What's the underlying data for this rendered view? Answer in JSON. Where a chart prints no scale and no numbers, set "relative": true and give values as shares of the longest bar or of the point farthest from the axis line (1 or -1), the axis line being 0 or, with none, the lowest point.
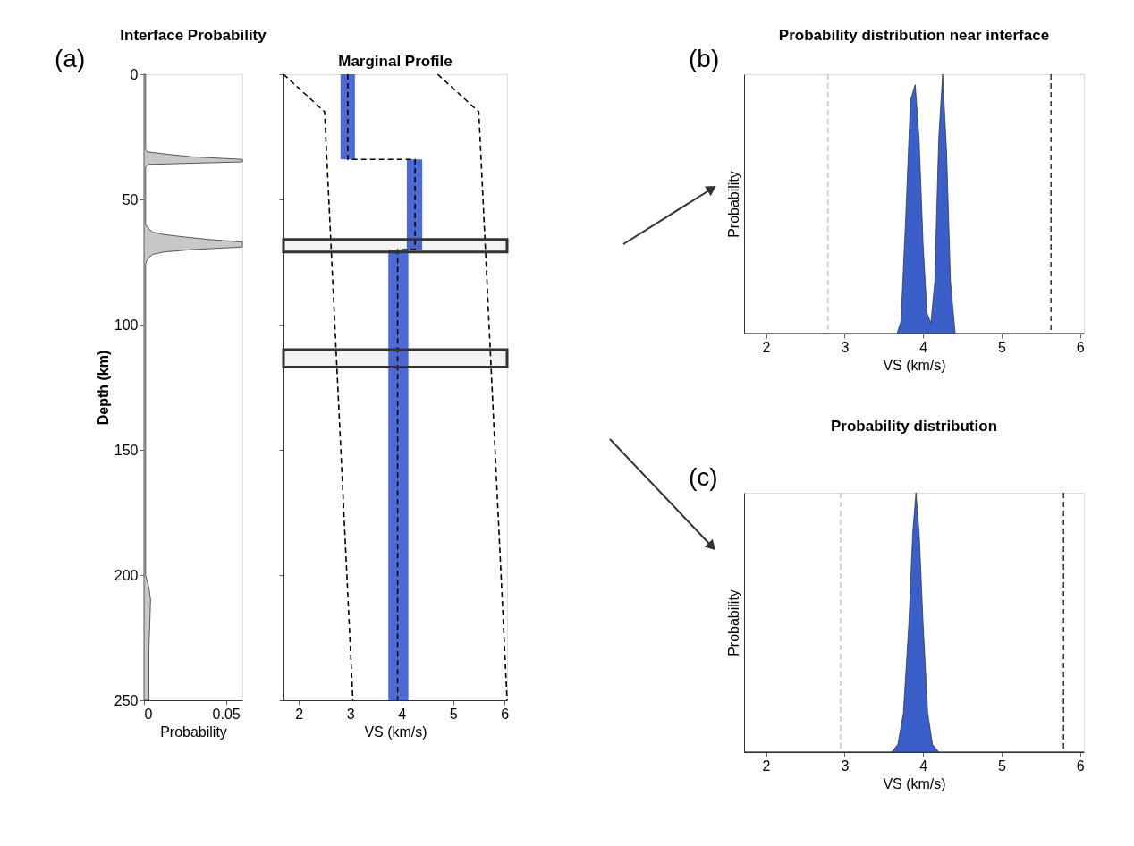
{
  "chart_data": [
    {
      "type": "area",
      "orientation": "horizontal",
      "title": "Interface Probability",
      "xlabel": "Probability",
      "ylabel": "Depth (km)",
      "annotations": [
        "(a)"
      ],
      "xlim": [
        0,
        0.06
      ],
      "xticks": [
        0,
        0.05
      ],
      "ylim": [
        250,
        0
      ],
      "yticks": [
        0,
        50,
        100,
        150,
        200,
        250
      ],
      "grid": false,
      "series": [
        {
          "color": "#c8c8c8",
          "x": [
            0,
            10,
            20,
            30,
            31,
            32,
            33,
            34,
            35,
            36,
            37,
            40,
            50,
            60,
            61,
            63,
            64,
            65,
            66,
            67,
            68,
            69,
            70,
            71,
            72,
            74,
            76,
            80,
            100,
            150,
            190,
            200,
            205,
            210,
            230,
            250
          ],
          "values": [
            0.001,
            0.001,
            0.001,
            0.001,
            0.002,
            0.015,
            0.03,
            0.06,
            0.06,
            0.003,
            0.001,
            0.001,
            0.001,
            0.001,
            0.002,
            0.005,
            0.012,
            0.025,
            0.04,
            0.06,
            0.06,
            0.06,
            0.03,
            0.012,
            0.005,
            0.002,
            0.001,
            0.001,
            0.001,
            0.001,
            0.001,
            0.001,
            0.003,
            0.004,
            0.003,
            0.003
          ]
        }
      ]
    },
    {
      "type": "line",
      "orientation": "horizontal",
      "title": "Marginal Profile",
      "xlabel": "VS (km/s)",
      "xlim": [
        1.7,
        6.05
      ],
      "xticks": [
        2,
        3,
        4,
        5,
        6
      ],
      "ylim": [
        250,
        0
      ],
      "yticks": [
        0,
        50,
        100,
        150,
        200,
        250
      ],
      "tick_labels": "x",
      "line_style": "dashed",
      "color": "#3b5bd0",
      "bands": [
        {
          "axis": "y",
          "from": 66,
          "to": 71,
          "color": "#333333"
        },
        {
          "axis": "y",
          "from": 110,
          "to": 117,
          "color": "#333333"
        }
      ],
      "series": [
        {
          "color": "#000000",
          "x": [
            0,
            34,
            34,
            70,
            70,
            250
          ],
          "values": [
            2.95,
            2.95,
            4.26,
            4.26,
            3.92,
            3.92
          ],
          "lower": [
            2.81,
            2.81,
            4.1,
            4.1,
            3.74,
            3.74
          ],
          "upper": [
            3.09,
            3.09,
            4.4,
            4.4,
            4.13,
            4.13
          ]
        },
        {
          "color": "#000000",
          "x": [
            0,
            15,
            250
          ],
          "values": [
            1.7,
            2.5,
            3.05
          ]
        },
        {
          "color": "#000000",
          "x": [
            0,
            15,
            250
          ],
          "values": [
            4.7,
            5.5,
            6.05
          ]
        }
      ]
    },
    {
      "type": "area",
      "title": "Probability distribution near interface",
      "xlabel": "VS (km/s)",
      "ylabel": "Probability",
      "annotations": [
        "(b)"
      ],
      "relative": true,
      "xlim": [
        1.72,
        6.05
      ],
      "xticks": [
        2,
        3,
        4,
        5,
        6
      ],
      "ref_lines": [
        {
          "axis": "x",
          "value": 2.79,
          "color": "#bbbbbb",
          "line_style": "dashed"
        },
        {
          "axis": "x",
          "value": 5.63,
          "color": "#000000",
          "line_style": "dashed"
        }
      ],
      "series": [
        {
          "color": "#3a5fc8",
          "x": [
            1.72,
            3.67,
            3.72,
            3.78,
            3.84,
            3.9,
            3.95,
            4.0,
            4.05,
            4.1,
            4.15,
            4.2,
            4.25,
            4.3,
            4.35,
            4.41,
            6.05
          ],
          "values": [
            0,
            0,
            0.05,
            0.45,
            0.9,
            0.96,
            0.75,
            0.35,
            0.08,
            0.04,
            0.2,
            0.75,
            1,
            0.7,
            0.2,
            0,
            0
          ]
        }
      ]
    },
    {
      "type": "area",
      "title": "Probability distribution",
      "xlabel": "VS (km/s)",
      "ylabel": "Probability",
      "annotations": [
        "(c)"
      ],
      "relative": true,
      "xlim": [
        1.72,
        6.05
      ],
      "xticks": [
        2,
        3,
        4,
        5,
        6
      ],
      "ref_lines": [
        {
          "axis": "x",
          "value": 2.95,
          "color": "#bbbbbb",
          "line_style": "dashed"
        },
        {
          "axis": "x",
          "value": 5.79,
          "color": "#000000",
          "line_style": "dashed"
        }
      ],
      "series": [
        {
          "color": "#3a5fc8",
          "x": [
            1.72,
            3.6,
            3.68,
            3.75,
            3.82,
            3.87,
            3.91,
            3.95,
            4.0,
            4.06,
            4.12,
            4.2,
            6.05
          ],
          "values": [
            0,
            0,
            0.03,
            0.15,
            0.5,
            0.85,
            1,
            0.85,
            0.5,
            0.15,
            0.03,
            0,
            0
          ]
        }
      ]
    }
  ]
}
